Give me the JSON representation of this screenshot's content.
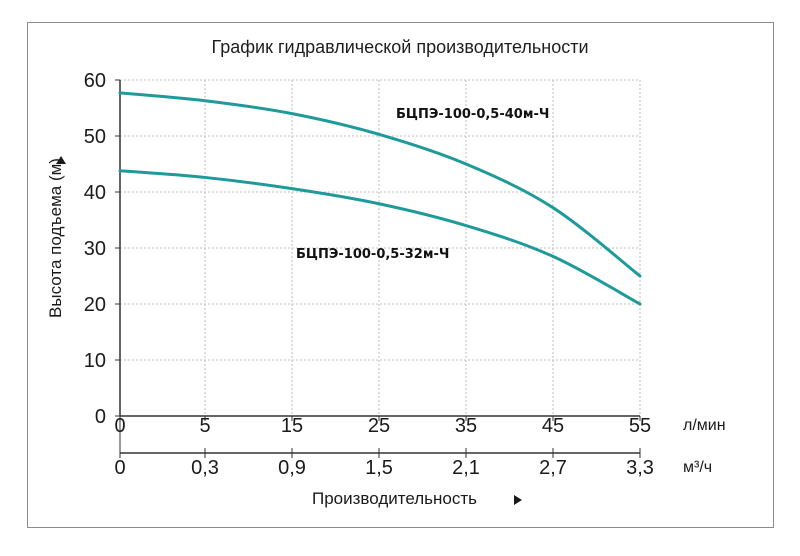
{
  "chart_data": {
    "type": "line",
    "title": "График гидравлической производительности",
    "ylabel": "Высота подъема (м)",
    "xlabel": "Производительность",
    "ylim": [
      0,
      60
    ],
    "yticks": [
      0,
      10,
      20,
      30,
      40,
      50,
      60
    ],
    "x_lpm_ticks": [
      "0",
      "5",
      "15",
      "25",
      "35",
      "45",
      "55"
    ],
    "x_lpm_unit": "л/мин",
    "x_m3h_ticks": [
      "0",
      "0,3",
      "0,9",
      "1,5",
      "2,1",
      "2,7",
      "3,3"
    ],
    "x_m3h_unit": "м³/ч",
    "grid": true,
    "series": [
      {
        "name": "БЦПЭ-100-0,5-40м-Ч",
        "color": "#1f9a9a",
        "x": [
          0,
          5,
          15,
          25,
          35,
          45,
          55
        ],
        "y": [
          57.7,
          56.3,
          54.0,
          50.3,
          45.0,
          37.2,
          25.0
        ]
      },
      {
        "name": "БЦПЭ-100-0,5-32м-Ч",
        "color": "#1f9a9a",
        "x": [
          0,
          5,
          15,
          25,
          35,
          45,
          55
        ],
        "y": [
          43.8,
          42.6,
          40.6,
          37.9,
          34.0,
          28.5,
          20.0
        ]
      }
    ]
  }
}
